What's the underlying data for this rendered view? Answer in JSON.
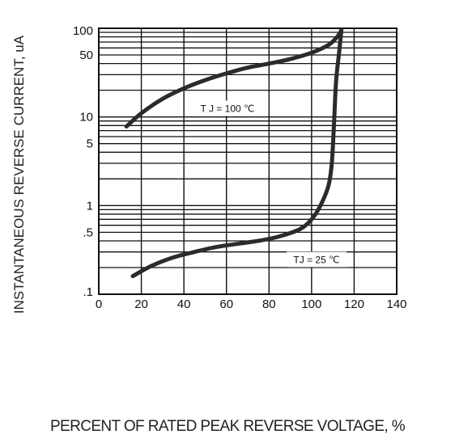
{
  "chart_data": {
    "type": "line",
    "title": "",
    "xlabel": "PERCENT OF RATED PEAK REVERSE VOLTAGE, %",
    "ylabel": "INSTANTANEOUS REVERSE CURRENT, uA",
    "xlim": [
      0,
      140
    ],
    "ylim": [
      0.1,
      100
    ],
    "yscale": "log",
    "grid": true,
    "x_ticks": [
      "0",
      "20",
      "40",
      "60",
      "80",
      "100",
      "120",
      "140"
    ],
    "y_ticks": [
      "100",
      "50",
      "10",
      "5",
      "1",
      ".5",
      ".1"
    ],
    "series": [
      {
        "name": "T J = 100 ℃",
        "points": [
          [
            13,
            7.8
          ],
          [
            20,
            11
          ],
          [
            30,
            16
          ],
          [
            40,
            21
          ],
          [
            50,
            26
          ],
          [
            60,
            31
          ],
          [
            70,
            36
          ],
          [
            80,
            40
          ],
          [
            90,
            45
          ],
          [
            100,
            53
          ],
          [
            108,
            65
          ],
          [
            112,
            80
          ],
          [
            114,
            95
          ]
        ]
      },
      {
        "name": "TJ = 25 ℃",
        "points": [
          [
            16,
            0.16
          ],
          [
            25,
            0.21
          ],
          [
            35,
            0.26
          ],
          [
            45,
            0.3
          ],
          [
            55,
            0.34
          ],
          [
            65,
            0.37
          ],
          [
            75,
            0.4
          ],
          [
            85,
            0.45
          ],
          [
            95,
            0.55
          ],
          [
            101,
            0.75
          ],
          [
            105,
            1.1
          ],
          [
            108,
            1.7
          ],
          [
            109.5,
            3
          ],
          [
            110.5,
            8
          ],
          [
            111.5,
            25
          ],
          [
            113,
            55
          ],
          [
            114,
            95
          ]
        ]
      }
    ],
    "annotations": [
      "T J = 100 ℃",
      "TJ = 25 ℃"
    ]
  }
}
